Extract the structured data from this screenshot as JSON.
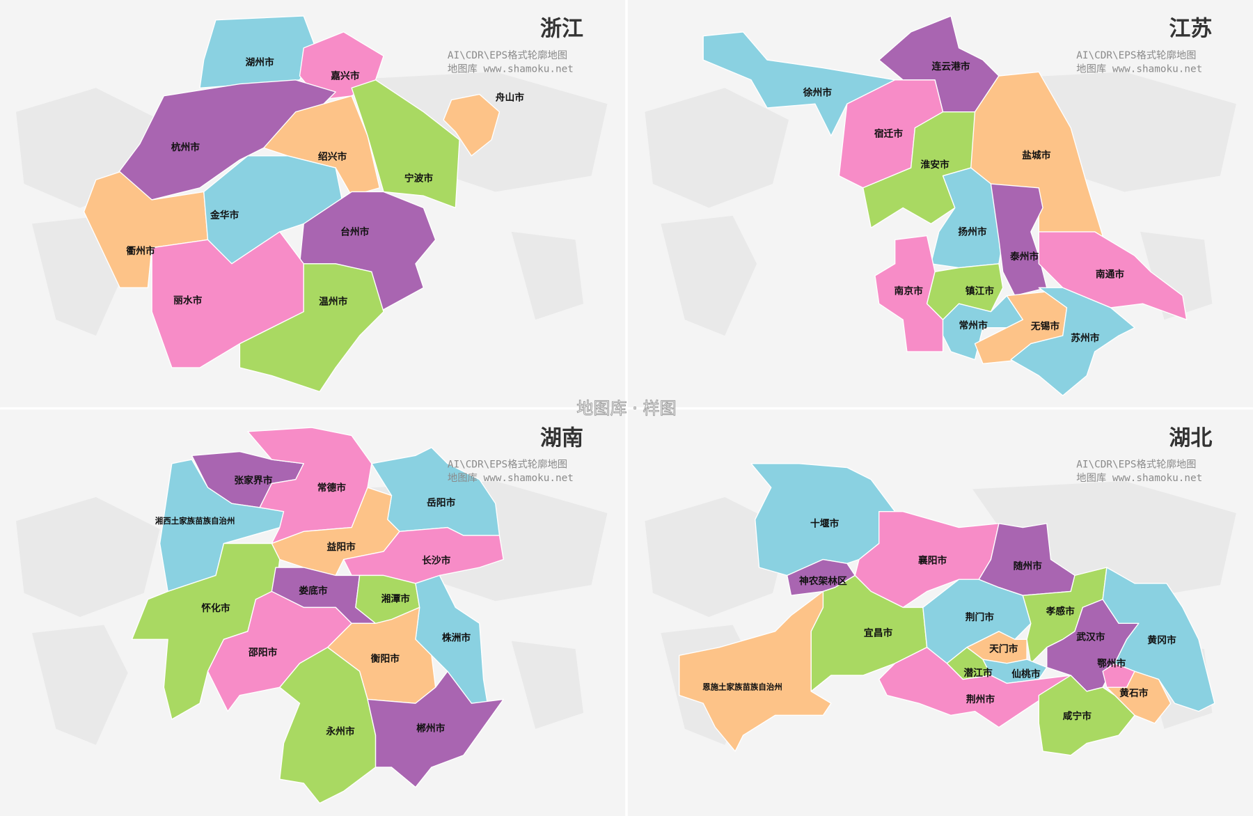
{
  "watermark": "地图库 · 样图",
  "colors": {
    "purple": "#a965b1",
    "cyan": "#8ad1e1",
    "pink": "#f78cc7",
    "orange": "#fdc388",
    "green": "#a9d962",
    "background": "#f4f4f4"
  },
  "provinces": [
    {
      "title": "浙江",
      "sub1": "AI\\CDR\\EPS格式轮廓地图",
      "sub2": "地图库 www.shamoku.net",
      "regions": [
        {
          "name": "湖州市",
          "color": "cyan"
        },
        {
          "name": "嘉兴市",
          "color": "pink"
        },
        {
          "name": "杭州市",
          "color": "purple"
        },
        {
          "name": "绍兴市",
          "color": "orange"
        },
        {
          "name": "宁波市",
          "color": "green"
        },
        {
          "name": "衢州市",
          "color": "orange"
        },
        {
          "name": "金华市",
          "color": "cyan"
        },
        {
          "name": "台州市",
          "color": "purple"
        },
        {
          "name": "丽水市",
          "color": "pink"
        },
        {
          "name": "温州市",
          "color": "green"
        },
        {
          "name": "舟山市",
          "color": "orange"
        }
      ]
    },
    {
      "title": "江苏",
      "sub1": "AI\\CDR\\EPS格式轮廓地图",
      "sub2": "地图库 www.shamoku.net",
      "regions": [
        {
          "name": "徐州市",
          "color": "cyan"
        },
        {
          "name": "连云港市",
          "color": "purple"
        },
        {
          "name": "宿迁市",
          "color": "pink"
        },
        {
          "name": "淮安市",
          "color": "green"
        },
        {
          "name": "盐城市",
          "color": "orange"
        },
        {
          "name": "扬州市",
          "color": "cyan"
        },
        {
          "name": "泰州市",
          "color": "purple"
        },
        {
          "name": "南通市",
          "color": "pink"
        },
        {
          "name": "南京市",
          "color": "pink"
        },
        {
          "name": "镇江市",
          "color": "green"
        },
        {
          "name": "常州市",
          "color": "cyan"
        },
        {
          "name": "无锡市",
          "color": "orange"
        },
        {
          "name": "苏州市",
          "color": "cyan"
        }
      ]
    },
    {
      "title": "湖南",
      "sub1": "AI\\CDR\\EPS格式轮廓地图",
      "sub2": "地图库 www.shamoku.net",
      "regions": [
        {
          "name": "张家界市",
          "color": "purple"
        },
        {
          "name": "湘西土家族苗族自治州",
          "color": "cyan"
        },
        {
          "name": "常德市",
          "color": "pink"
        },
        {
          "name": "岳阳市",
          "color": "cyan"
        },
        {
          "name": "益阳市",
          "color": "orange"
        },
        {
          "name": "长沙市",
          "color": "pink"
        },
        {
          "name": "怀化市",
          "color": "green"
        },
        {
          "name": "娄底市",
          "color": "purple"
        },
        {
          "name": "湘潭市",
          "color": "green"
        },
        {
          "name": "株洲市",
          "color": "cyan"
        },
        {
          "name": "邵阳市",
          "color": "pink"
        },
        {
          "name": "衡阳市",
          "color": "orange"
        },
        {
          "name": "永州市",
          "color": "green"
        },
        {
          "name": "郴州市",
          "color": "purple"
        }
      ]
    },
    {
      "title": "湖北",
      "sub1": "AI\\CDR\\EPS格式轮廓地图",
      "sub2": "地图库 www.shamoku.net",
      "regions": [
        {
          "name": "十堰市",
          "color": "cyan"
        },
        {
          "name": "神农架林区",
          "color": "purple"
        },
        {
          "name": "襄阳市",
          "color": "pink"
        },
        {
          "name": "随州市",
          "color": "purple"
        },
        {
          "name": "宜昌市",
          "color": "green"
        },
        {
          "name": "恩施土家族苗族自治州",
          "color": "orange"
        },
        {
          "name": "荆门市",
          "color": "cyan"
        },
        {
          "name": "孝感市",
          "color": "green"
        },
        {
          "name": "天门市",
          "color": "orange"
        },
        {
          "name": "潜江市",
          "color": "green"
        },
        {
          "name": "仙桃市",
          "color": "cyan"
        },
        {
          "name": "荆州市",
          "color": "pink"
        },
        {
          "name": "武汉市",
          "color": "purple"
        },
        {
          "name": "黄冈市",
          "color": "cyan"
        },
        {
          "name": "鄂州市",
          "color": "pink"
        },
        {
          "name": "黄石市",
          "color": "orange"
        },
        {
          "name": "咸宁市",
          "color": "green"
        }
      ]
    }
  ]
}
